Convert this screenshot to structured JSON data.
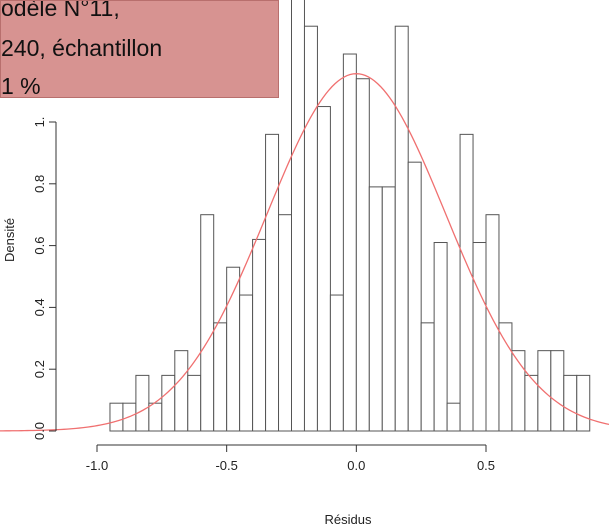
{
  "callout": {
    "line1": "odèle N°11,",
    "line2": "240, échantillon",
    "line3": "1 %",
    "bg_color": "#d79391"
  },
  "chart_data": {
    "type": "bar",
    "subtype": "histogram",
    "xlabel": "Résidus",
    "ylabel": "Densité",
    "xlim": [
      -1.0,
      0.9
    ],
    "ylim": [
      0,
      1.4
    ],
    "x_ticks": [
      -1.0,
      -0.5,
      0.0,
      0.5
    ],
    "x_tick_labels": [
      "-1.0",
      "-0.5",
      "0.0",
      "0.5"
    ],
    "y_ticks": [
      0.0,
      0.2,
      0.4,
      0.6,
      0.8,
      1.0
    ],
    "y_tick_labels": [
      "0.0",
      "0.2",
      "0.4",
      "0.6",
      "0.8",
      "1."
    ],
    "bin_width": 0.05,
    "bins": [
      {
        "x0": -0.95,
        "x1": -0.9,
        "density": 0.09
      },
      {
        "x0": -0.9,
        "x1": -0.85,
        "density": 0.09
      },
      {
        "x0": -0.85,
        "x1": -0.8,
        "density": 0.18
      },
      {
        "x0": -0.8,
        "x1": -0.75,
        "density": 0.09
      },
      {
        "x0": -0.75,
        "x1": -0.7,
        "density": 0.18
      },
      {
        "x0": -0.7,
        "x1": -0.65,
        "density": 0.26
      },
      {
        "x0": -0.65,
        "x1": -0.6,
        "density": 0.18
      },
      {
        "x0": -0.6,
        "x1": -0.55,
        "density": 0.7
      },
      {
        "x0": -0.55,
        "x1": -0.5,
        "density": 0.35
      },
      {
        "x0": -0.5,
        "x1": -0.45,
        "density": 0.53
      },
      {
        "x0": -0.45,
        "x1": -0.4,
        "density": 0.44
      },
      {
        "x0": -0.4,
        "x1": -0.35,
        "density": 0.62
      },
      {
        "x0": -0.35,
        "x1": -0.3,
        "density": 0.96
      },
      {
        "x0": -0.3,
        "x1": -0.25,
        "density": 0.7
      },
      {
        "x0": -0.25,
        "x1": -0.2,
        "density": 1.4
      },
      {
        "x0": -0.2,
        "x1": -0.15,
        "density": 1.31
      },
      {
        "x0": -0.15,
        "x1": -0.1,
        "density": 1.05
      },
      {
        "x0": -0.1,
        "x1": -0.05,
        "density": 0.44
      },
      {
        "x0": -0.05,
        "x1": 0.0,
        "density": 1.22
      },
      {
        "x0": 0.0,
        "x1": 0.05,
        "density": 1.14
      },
      {
        "x0": 0.05,
        "x1": 0.1,
        "density": 0.79
      },
      {
        "x0": 0.1,
        "x1": 0.15,
        "density": 0.79
      },
      {
        "x0": 0.15,
        "x1": 0.2,
        "density": 1.31
      },
      {
        "x0": 0.2,
        "x1": 0.25,
        "density": 0.87
      },
      {
        "x0": 0.25,
        "x1": 0.3,
        "density": 0.35
      },
      {
        "x0": 0.3,
        "x1": 0.35,
        "density": 0.61
      },
      {
        "x0": 0.35,
        "x1": 0.4,
        "density": 0.09
      },
      {
        "x0": 0.4,
        "x1": 0.45,
        "density": 0.96
      },
      {
        "x0": 0.45,
        "x1": 0.5,
        "density": 0.61
      },
      {
        "x0": 0.5,
        "x1": 0.55,
        "density": 0.7
      },
      {
        "x0": 0.55,
        "x1": 0.6,
        "density": 0.35
      },
      {
        "x0": 0.6,
        "x1": 0.65,
        "density": 0.26
      },
      {
        "x0": 0.65,
        "x1": 0.7,
        "density": 0.18
      },
      {
        "x0": 0.7,
        "x1": 0.75,
        "density": 0.26
      },
      {
        "x0": 0.75,
        "x1": 0.8,
        "density": 0.26
      },
      {
        "x0": 0.8,
        "x1": 0.85,
        "density": 0.18
      },
      {
        "x0": 0.85,
        "x1": 0.9,
        "density": 0.18
      }
    ],
    "overlay_curve": {
      "type": "normal",
      "mean": 0.0,
      "sd": 0.345,
      "color": "#f07070"
    },
    "bar_stroke_color": "#555555",
    "bar_fill_color": "#ffffff",
    "grid": false
  }
}
